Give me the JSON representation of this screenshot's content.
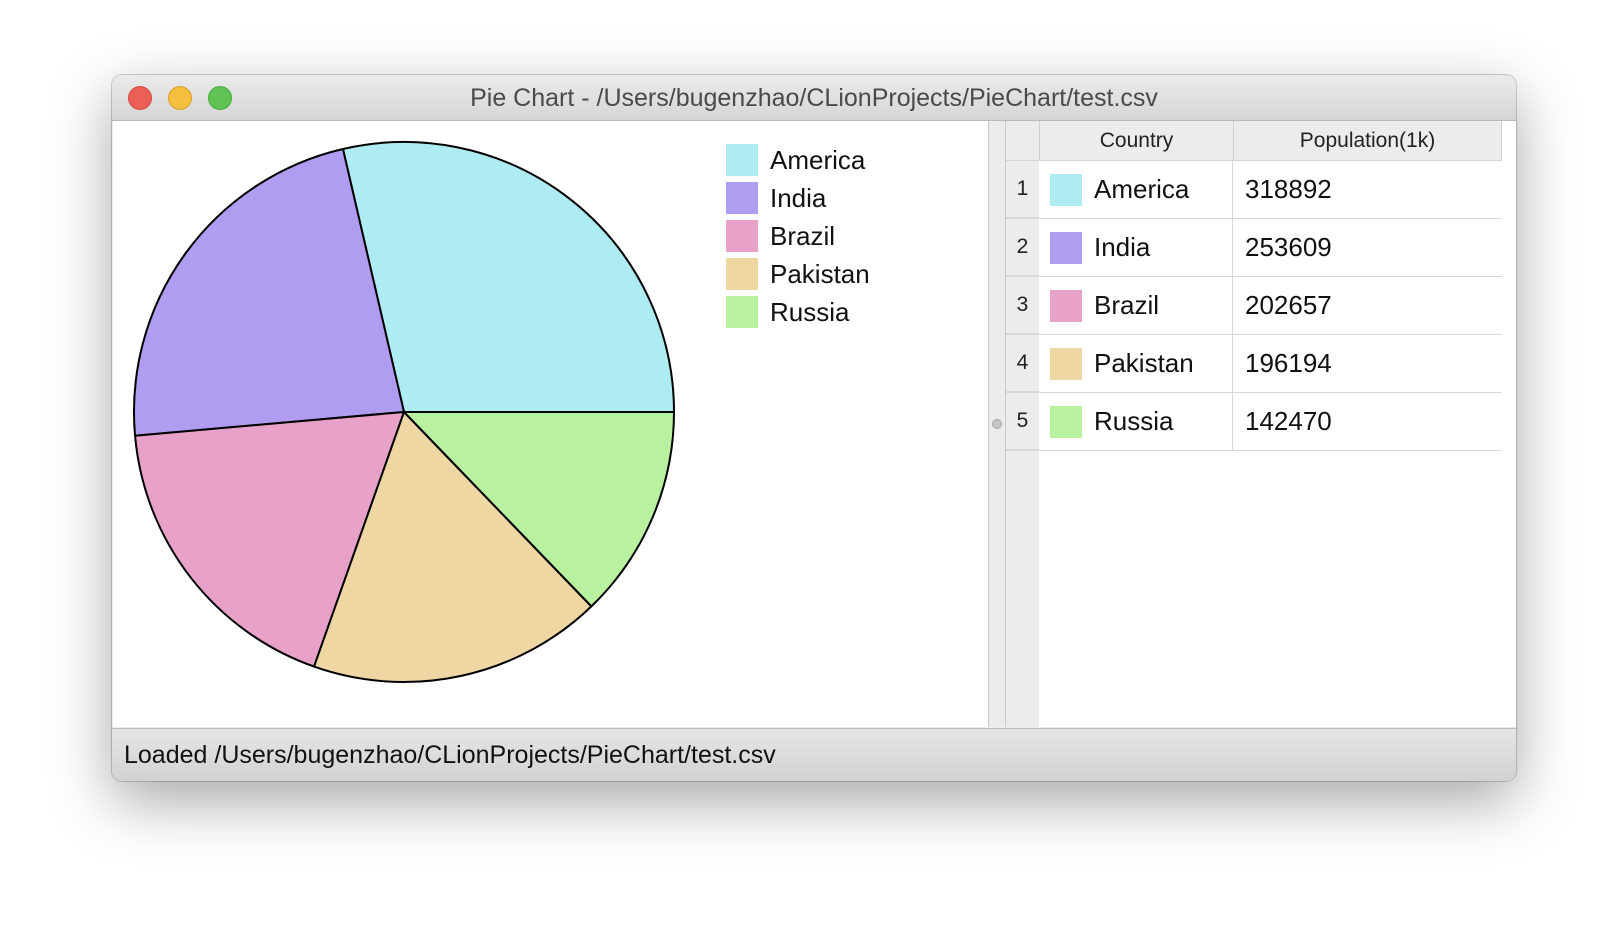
{
  "window": {
    "title": "Pie Chart - /Users/bugenzhao/CLionProjects/PieChart/test.csv"
  },
  "legend": [
    {
      "label": "America",
      "color": "#aeebf2"
    },
    {
      "label": "India",
      "color": "#b09df2"
    },
    {
      "label": "Brazil",
      "color": "#e8a2c9"
    },
    {
      "label": "Pakistan",
      "color": "#eed7a3"
    },
    {
      "label": "Russia",
      "color": "#b8f2a1"
    }
  ],
  "table": {
    "headers": {
      "country": "Country",
      "population": "Population(1k)"
    },
    "rows": [
      {
        "num": "1",
        "country": "America",
        "population": "318892",
        "color": "#aeebf2"
      },
      {
        "num": "2",
        "country": "India",
        "population": "253609",
        "color": "#b09df2"
      },
      {
        "num": "3",
        "country": "Brazil",
        "population": "202657",
        "color": "#e8a2c9"
      },
      {
        "num": "4",
        "country": "Pakistan",
        "population": "196194",
        "color": "#eed7a3"
      },
      {
        "num": "5",
        "country": "Russia",
        "population": "142470",
        "color": "#b8f2a1"
      }
    ]
  },
  "status": {
    "text": "Loaded /Users/bugenzhao/CLionProjects/PieChart/test.csv"
  },
  "chart_data": {
    "type": "pie",
    "categories": [
      "America",
      "India",
      "Brazil",
      "Pakistan",
      "Russia"
    ],
    "values": [
      318892,
      253609,
      202657,
      196194,
      142470
    ],
    "colors": [
      "#aeebf2",
      "#b09df2",
      "#e8a2c9",
      "#eed7a3",
      "#b8f2a1"
    ],
    "start": "3 o'clock, counter-clockwise",
    "legend_position": "top-right"
  }
}
